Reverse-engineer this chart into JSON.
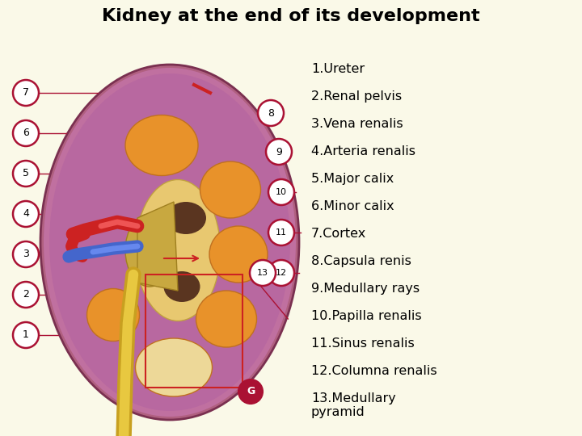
{
  "title": "Kidney at the end of its development",
  "title_fontsize": 16,
  "title_fontweight": "bold",
  "background_color": "#faf9e8",
  "legend_items": [
    "1.Ureter",
    "2.Renal pelvis",
    "3.Vena renalis",
    "4.Arteria renalis",
    "5.Major calix",
    "6.Minor calix",
    "7.Cortex",
    "8.Capsula renis",
    "9.Medullary rays",
    "10.Papilla renalis",
    "11.Sinus renalis",
    "12.Columna renalis",
    "13.Medullary\npyramid"
  ],
  "legend_fontsize": 11.5,
  "text_color": "#000000",
  "fig_bg": "#faf9e8",
  "label_color": "#aa1133",
  "kidney_outer_color": "#b06080",
  "kidney_outer_edge": "#7a3050",
  "kidney_cortex_color": "#c878a0",
  "kidney_sinus_color": "#e8c870",
  "kidney_sinus_edge": "#c0a040",
  "pyramid_color": "#e8922a",
  "pyramid_edge": "#c07020",
  "pelvis_color": "#c8a840",
  "artery_color": "#cc2222",
  "vein_color": "#4466cc",
  "dark_region_color": "#5a3520"
}
